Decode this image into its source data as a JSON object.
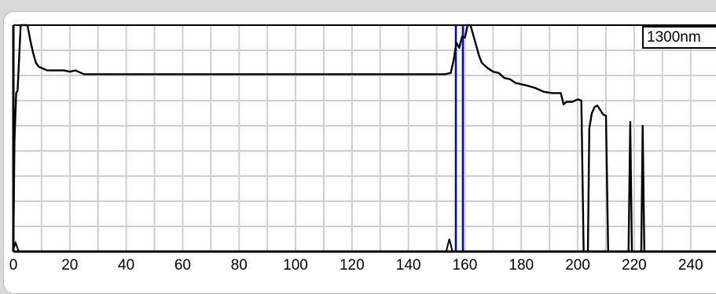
{
  "chart_data": {
    "type": "line",
    "title": "",
    "xlabel": "",
    "ylabel": "",
    "xlim": [
      0,
      249
    ],
    "ylim": [
      0,
      9
    ],
    "grid": true,
    "x_ticks": [
      0,
      20,
      40,
      60,
      80,
      100,
      120,
      140,
      160,
      180,
      200,
      220,
      240
    ],
    "x_tick_labels": [
      "0",
      "20",
      "40",
      "60",
      "80",
      "100",
      "120",
      "140",
      "160",
      "180",
      "200",
      "220",
      "240"
    ],
    "legend": {
      "text": "1300nm",
      "position": "top-right"
    },
    "markers": [
      {
        "x": 156.8,
        "color": "#0000cc"
      },
      {
        "x": 159.3,
        "color": "#0000cc"
      }
    ],
    "colors": {
      "trace": "#000000",
      "grid": "#cfcfcf",
      "marker": "#0000cc",
      "background": "#ffffff",
      "frame": "#d9d9d9"
    },
    "series": [
      {
        "values": [
          [
            0,
            0
          ],
          [
            0.4,
            4.4
          ],
          [
            1,
            6.3
          ],
          [
            1.5,
            6.4
          ],
          [
            2.6,
            9
          ],
          [
            5,
            9
          ],
          [
            6,
            8.4
          ],
          [
            7,
            7.9
          ],
          [
            8,
            7.5
          ],
          [
            9,
            7.35
          ],
          [
            12,
            7.2
          ],
          [
            15,
            7.2
          ],
          [
            18,
            7.2
          ],
          [
            20,
            7.15
          ],
          [
            22,
            7.2
          ],
          [
            24,
            7.1
          ],
          [
            25,
            7.05
          ],
          [
            60,
            7.05
          ],
          [
            100,
            7.05
          ],
          [
            140,
            7.05
          ],
          [
            153,
            7.05
          ],
          [
            155,
            7.1
          ],
          [
            156,
            7.6
          ],
          [
            157,
            8.3
          ],
          [
            158,
            8.1
          ],
          [
            159,
            8.55
          ],
          [
            160,
            8.5
          ],
          [
            161,
            9
          ],
          [
            162,
            9
          ],
          [
            163,
            8.6
          ],
          [
            164,
            8.2
          ],
          [
            165,
            7.8
          ],
          [
            166,
            7.5
          ],
          [
            168,
            7.3
          ],
          [
            170,
            7.15
          ],
          [
            172,
            7.1
          ],
          [
            174,
            6.9
          ],
          [
            176,
            6.85
          ],
          [
            178,
            6.7
          ],
          [
            182,
            6.6
          ],
          [
            185,
            6.5
          ],
          [
            188,
            6.35
          ],
          [
            191,
            6.3
          ],
          [
            194,
            6.3
          ],
          [
            195,
            5.85
          ],
          [
            196,
            5.95
          ],
          [
            198,
            5.95
          ],
          [
            200,
            6.05
          ],
          [
            201.3,
            6
          ],
          [
            202.1,
            0
          ],
          [
            203.6,
            0
          ],
          [
            204.1,
            4.9
          ],
          [
            205,
            5.5
          ],
          [
            206,
            5.75
          ],
          [
            207,
            5.8
          ],
          [
            209,
            5.45
          ],
          [
            210,
            5.4
          ],
          [
            210.8,
            0
          ],
          [
            218,
            0
          ],
          [
            218.6,
            5.15
          ],
          [
            219.2,
            0
          ],
          [
            222.5,
            0
          ],
          [
            223,
            5
          ],
          [
            223.6,
            0
          ],
          [
            249,
            0
          ]
        ]
      }
    ],
    "base_events": [
      {
        "x": 0.8,
        "y": 0.35
      },
      {
        "x": 154.5,
        "y": 0.5
      }
    ]
  }
}
